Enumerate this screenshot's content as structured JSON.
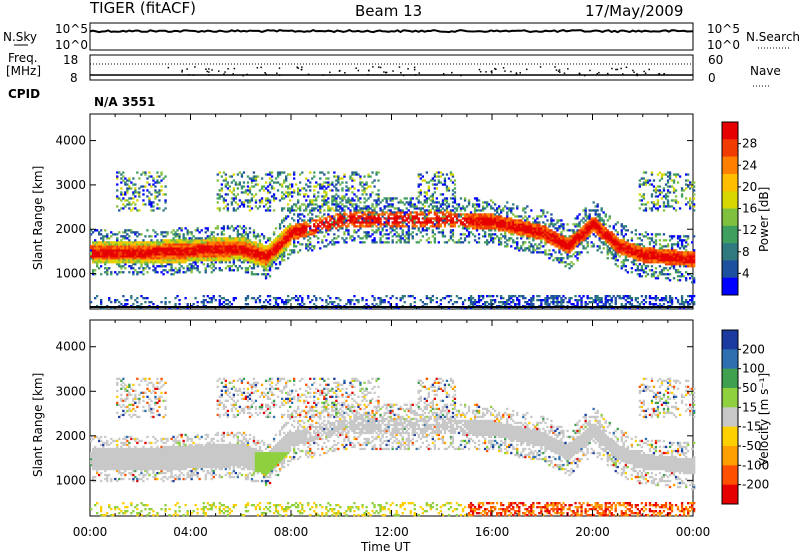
{
  "header": {
    "title": "TIGER (fitACF)",
    "beam": "Beam 13",
    "date": "17/May/2009"
  },
  "strips": {
    "nsky": {
      "left_label": "N.Sky",
      "right_label": "N.Search",
      "left_ticks": [
        "10^5",
        "10^0"
      ],
      "right_ticks": [
        "10^5",
        "10^0"
      ],
      "trace_level": 0.7
    },
    "freq": {
      "left_label_1": "Freq.",
      "left_label_2": "[MHz]",
      "left_ticks": [
        "18",
        "8"
      ],
      "right_label": "Nave",
      "right_ticks": [
        "60",
        "0"
      ]
    },
    "cpid": {
      "label": "CPID",
      "value": "N/A 3551"
    }
  },
  "panels": {
    "power": {
      "ylabel": "Slant Range [km]",
      "cbar_label": "Power [dB]",
      "cbar_ticks": [
        "28",
        "24",
        "20",
        "16",
        "12",
        "8",
        "4"
      ],
      "cbar_colors": [
        "#e60000",
        "#f03c00",
        "#ff7f00",
        "#ffbf00",
        "#d7d700",
        "#7fc03f",
        "#3f9f5f",
        "#2e7a7f",
        "#1e50a0",
        "#0000ff"
      ]
    },
    "velocity": {
      "ylabel": "Slant Range [km]",
      "cbar_label": "Velocity [m s⁻¹]",
      "cbar_ticks": [
        "200",
        "100",
        "50",
        "15",
        "-15",
        "-50",
        "-100",
        "-200"
      ],
      "cbar_colors": [
        "#1a3aa0",
        "#2e6fb0",
        "#3fa050",
        "#8fd03f",
        "#c8c8c8",
        "#ffd000",
        "#ff9f00",
        "#ff5000",
        "#e60000"
      ]
    }
  },
  "chart_data": {
    "type": "heatmap",
    "title": "TIGER (fitACF)",
    "xlabel": "Time UT",
    "ylabel": "Slant Range [km]",
    "x_ticks": [
      "00:00",
      "04:00",
      "08:00",
      "12:00",
      "16:00",
      "20:00",
      "00:00"
    ],
    "y_ticks": [
      "1000",
      "2000",
      "3000",
      "4000"
    ],
    "ylim": [
      200,
      4600
    ],
    "xlim_hours": [
      0,
      24
    ],
    "main_echo_band_km": [
      [
        0,
        1450
      ],
      [
        2,
        1450
      ],
      [
        4,
        1500
      ],
      [
        6,
        1550
      ],
      [
        7,
        1350
      ],
      [
        8,
        1900
      ],
      [
        10,
        2200
      ],
      [
        12,
        2200
      ],
      [
        14,
        2200
      ],
      [
        16,
        2150
      ],
      [
        18,
        1900
      ],
      [
        19,
        1600
      ],
      [
        20,
        2100
      ],
      [
        21,
        1600
      ],
      [
        22,
        1400
      ],
      [
        24,
        1300
      ]
    ]
  }
}
